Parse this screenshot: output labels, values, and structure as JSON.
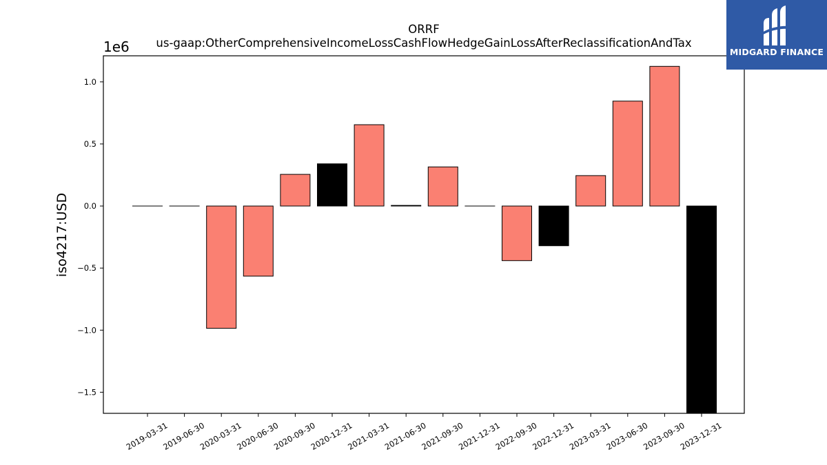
{
  "chart_data": {
    "type": "bar",
    "title_lines": [
      "ORRF",
      "us-gaap:OtherComprehensiveIncomeLossCashFlowHedgeGainLossAfterReclassificationAndTax"
    ],
    "ylabel": "iso4217:USD",
    "y_offset_label": "1e6",
    "ylim": [
      -1.67,
      1.21
    ],
    "y_ticks": [
      -1.5,
      -1.0,
      -0.5,
      0.0,
      0.5,
      1.0
    ],
    "y_tick_labels": [
      "−1.5",
      "−1.0",
      "−0.5",
      "0.0",
      "0.5",
      "1.0"
    ],
    "categories": [
      "2019-03-31",
      "2019-06-30",
      "2020-03-31",
      "2020-06-30",
      "2020-09-30",
      "2020-12-31",
      "2021-03-31",
      "2021-06-30",
      "2021-09-30",
      "2021-12-31",
      "2022-09-30",
      "2022-12-31",
      "2023-03-31",
      "2023-06-30",
      "2023-09-30",
      "2023-12-31"
    ],
    "values": [
      0.0,
      0.0,
      -0.985,
      -0.565,
      0.255,
      0.34,
      0.655,
      0.005,
      0.315,
      0.0,
      -0.44,
      -0.32,
      0.245,
      0.845,
      1.125,
      -1.67
    ],
    "bar_colors": [
      "#fa8072",
      "#fa8072",
      "#fa8072",
      "#fa8072",
      "#fa8072",
      "#000000",
      "#fa8072",
      "#fa8072",
      "#fa8072",
      "#fa8072",
      "#fa8072",
      "#000000",
      "#fa8072",
      "#fa8072",
      "#fa8072",
      "#000000"
    ],
    "grid": false,
    "legend": "none"
  },
  "logo": {
    "text": "MIDGARD FINANCE",
    "background": "#2f5aa6"
  }
}
